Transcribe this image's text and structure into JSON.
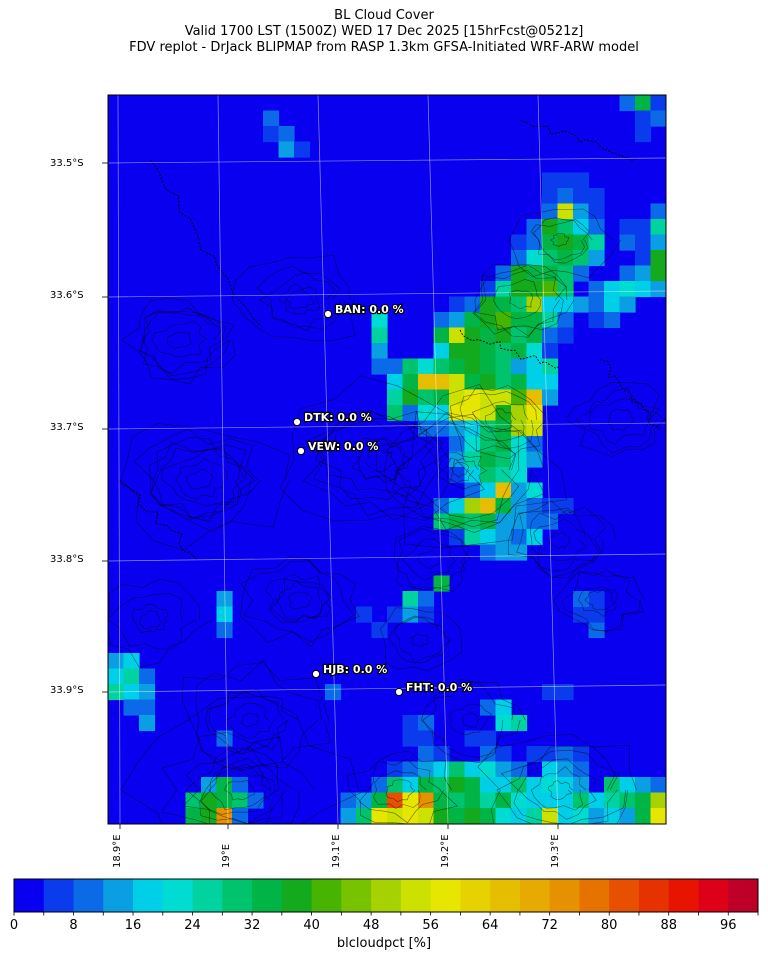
{
  "title": {
    "line1": "BL Cloud Cover",
    "line2": "Valid 1700 LST (1500Z) WED 17 Dec 2025 [15hrFcst@0521z]",
    "line3": "FDV replot - DrJack BLIPMAP from RASP 1.3km GFSA-Initiated WRF-ARW model"
  },
  "lat_labels": [
    "33.5°S",
    "33.6°S",
    "33.7°S",
    "33.8°S",
    "33.9°S"
  ],
  "lon_labels": [
    "18.9°E",
    "19°E",
    "19.1°E",
    "19.2°E",
    "19.3°E"
  ],
  "stations": [
    {
      "id": "BAN",
      "label": "BAN: 0.0 %",
      "value": 0.0
    },
    {
      "id": "DTK",
      "label": "DTK: 0.0 %",
      "value": 0.0
    },
    {
      "id": "VEW",
      "label": "VEW: 0.0 %",
      "value": 0.0
    },
    {
      "id": "HJB",
      "label": "HJB: 0.0 %",
      "value": 0.0
    },
    {
      "id": "FHT",
      "label": "FHT: 0.0 %",
      "value": 0.0
    }
  ],
  "colorbar": {
    "label": "blcloudpct [%]",
    "ticks": [
      "0",
      "8",
      "16",
      "24",
      "32",
      "40",
      "48",
      "56",
      "64",
      "72",
      "80",
      "88",
      "96"
    ],
    "colors": [
      "#0a00f0",
      "#0a3ced",
      "#0a6ae8",
      "#0a9ee3",
      "#00cfe8",
      "#00dcd2",
      "#00d2a0",
      "#00c36e",
      "#00b446",
      "#14aa1e",
      "#46b400",
      "#78c300",
      "#a5d200",
      "#cde100",
      "#e6e600",
      "#e6d200",
      "#e6be00",
      "#e6aa00",
      "#e69100",
      "#e67300",
      "#e65000",
      "#e63200",
      "#e61400",
      "#dc0019",
      "#be0028"
    ],
    "colorbar_min": 0,
    "colorbar_max": 100,
    "colorbar_step": 4
  },
  "map": {
    "background_color": "#0a00f0"
  }
}
